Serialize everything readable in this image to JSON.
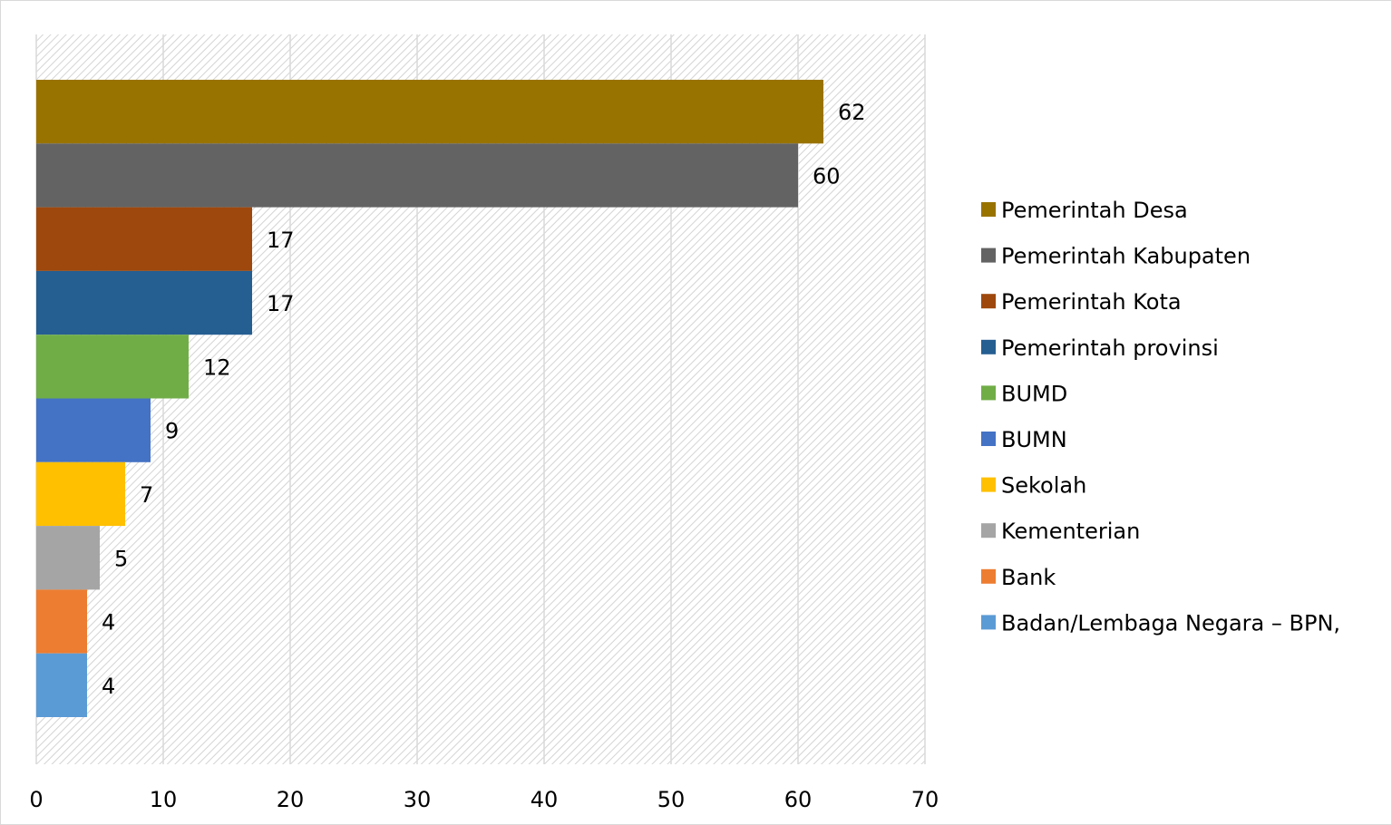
{
  "chart_data": {
    "type": "bar",
    "orientation": "horizontal",
    "categories": [
      "Pemerintah Desa",
      "Pemerintah Kabupaten",
      "Pemerintah Kota",
      "Pemerintah provinsi",
      "BUMD",
      "BUMN",
      "Sekolah",
      "Kementerian",
      "Bank",
      "Badan/Lembaga Negara – BPN,"
    ],
    "values": [
      62,
      60,
      17,
      17,
      12,
      9,
      7,
      5,
      4,
      4
    ],
    "colors": [
      "#997300",
      "#636363",
      "#9E480E",
      "#255E91",
      "#70AD47",
      "#4472C4",
      "#FFC000",
      "#A5A5A5",
      "#ED7D31",
      "#5B9BD5"
    ],
    "data_labels": [
      "62",
      "60",
      "17",
      "17",
      "12",
      "9",
      "7",
      "5",
      "4",
      "4"
    ],
    "x_ticks": [
      "0",
      "10",
      "20",
      "30",
      "40",
      "50",
      "60",
      "70"
    ],
    "xlim": [
      0,
      70
    ],
    "title": "",
    "xlabel": "",
    "ylabel": "",
    "grid": true,
    "plot_background": "diagonal-hatch",
    "legend_position": "right"
  }
}
